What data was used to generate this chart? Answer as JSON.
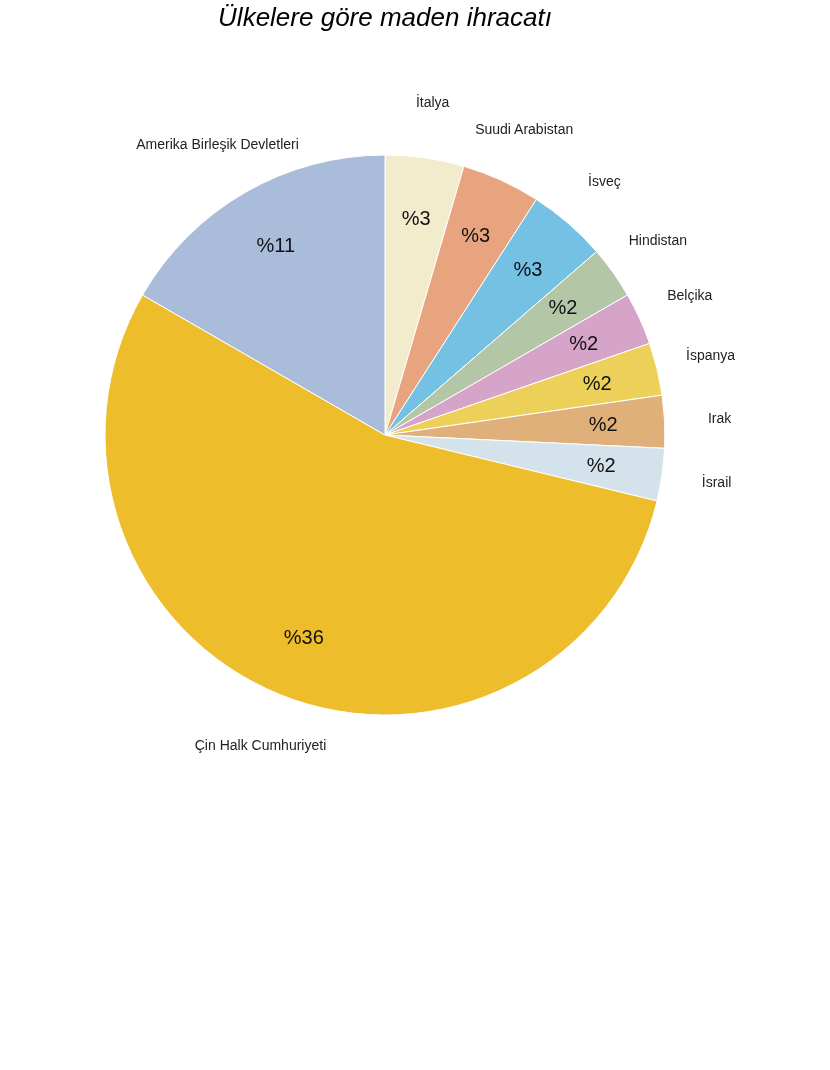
{
  "chart_data": {
    "type": "pie",
    "title": "Ülkelere göre maden ihracatı",
    "categories": [
      "İtalya",
      "Suudi Arabistan",
      "İsveç",
      "Hindistan",
      "Belçika",
      "İspanya",
      "Irak",
      "İsrail",
      "Çin Halk Cumhuriyeti",
      "Amerika Birleşik Devletleri"
    ],
    "values": [
      3,
      3,
      3,
      2,
      2,
      2,
      2,
      2,
      36,
      11
    ],
    "value_labels": [
      "%3",
      "%3",
      "%3",
      "%2",
      "%2",
      "%2",
      "%2",
      "%2",
      "%36",
      "%11"
    ],
    "colors": [
      "#f2ebcc",
      "#e8a47e",
      "#74c1e3",
      "#b3c7a6",
      "#d6a3c9",
      "#ecd05a",
      "#e0b07a",
      "#d4e2ec",
      "#eebd2b",
      "#a9bcd9"
    ]
  }
}
